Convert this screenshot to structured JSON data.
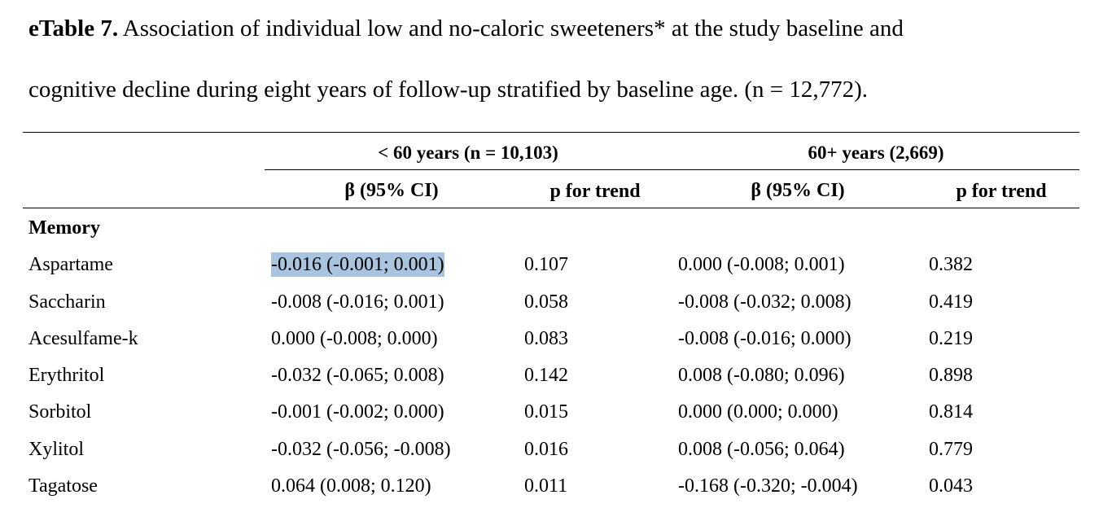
{
  "title": {
    "bold": "eTable 7.",
    "line1": " Association of individual low and no-caloric sweeteners* at the study baseline and",
    "line2": "cognitive decline during eight years of follow-up stratified by baseline age. (n = 12,772)."
  },
  "table": {
    "group_headers": [
      "< 60 years (n = 10,103)",
      "60+ years (2,669)"
    ],
    "col_headers": [
      "β (95% CI)",
      "p for trend",
      "β (95% CI)",
      "p for trend"
    ],
    "section": "Memory",
    "rows": [
      {
        "name": "Aspartame",
        "b1": "-0.016 (-0.001; 0.001)",
        "p1": "0.107",
        "b2": "0.000 (-0.008; 0.001)",
        "p2": "0.382"
      },
      {
        "name": "Saccharin",
        "b1": "-0.008 (-0.016; 0.001)",
        "p1": "0.058",
        "b2": "-0.008 (-0.032; 0.008)",
        "p2": "0.419"
      },
      {
        "name": "Acesulfame-k",
        "b1": "0.000 (-0.008; 0.000)",
        "p1": "0.083",
        "b2": "-0.008 (-0.016; 0.000)",
        "p2": "0.219"
      },
      {
        "name": "Erythritol",
        "b1": "-0.032 (-0.065; 0.008)",
        "p1": "0.142",
        "b2": "0.008 (-0.080; 0.096)",
        "p2": "0.898"
      },
      {
        "name": "Sorbitol",
        "b1": "-0.001 (-0.002; 0.000)",
        "p1": "0.015",
        "b2": "0.000 (0.000; 0.000)",
        "p2": "0.814"
      },
      {
        "name": "Xylitol",
        "b1": "-0.032 (-0.056; -0.008)",
        "p1": "0.016",
        "b2": "0.008 (-0.056; 0.064)",
        "p2": "0.779"
      },
      {
        "name": "Tagatose",
        "b1": "0.064 (0.008; 0.120)",
        "p1": "0.011",
        "b2": "-0.168 (-0.320; -0.004)",
        "p2": "0.043"
      }
    ]
  },
  "colors": {
    "selection_highlight": "#a8c4de"
  }
}
